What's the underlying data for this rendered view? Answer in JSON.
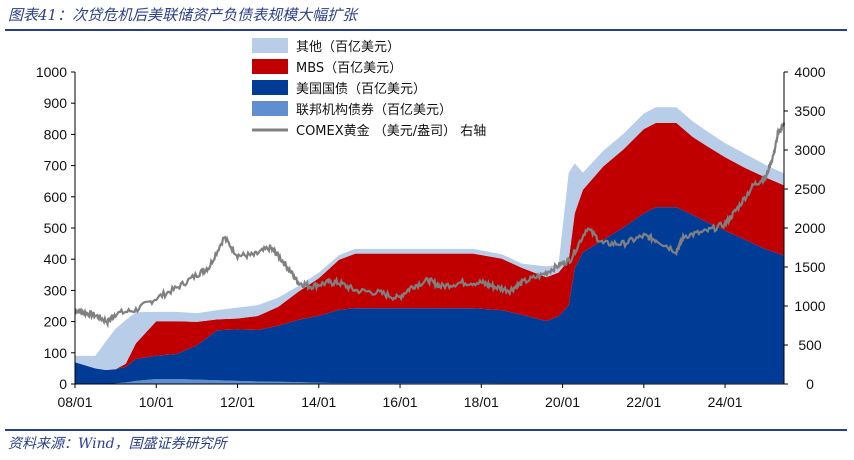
{
  "header": {
    "title": "图表41：次贷危机后美联储资产负债表规模大幅扩张"
  },
  "footer": {
    "source": "资料来源：Wind，国盛证券研究所"
  },
  "chart_data": {
    "type": "area",
    "stacked": true,
    "x_ticks": [
      "08/01",
      "10/01",
      "12/01",
      "14/01",
      "16/01",
      "18/01",
      "20/01",
      "22/01",
      "24/01"
    ],
    "x_range": [
      2008.0,
      2025.45
    ],
    "y_left": {
      "range": [
        0,
        1000
      ],
      "ticks": [
        0,
        100,
        200,
        300,
        400,
        500,
        600,
        700,
        800,
        900,
        1000
      ]
    },
    "y_right": {
      "range": [
        0,
        4000
      ],
      "ticks": [
        0,
        500,
        1000,
        1500,
        2000,
        2500,
        3000,
        3500,
        4000
      ],
      "label": "右轴"
    },
    "x": [
      2008.0,
      2008.5,
      2008.75,
      2009.0,
      2009.25,
      2009.5,
      2010.0,
      2010.5,
      2011.0,
      2011.5,
      2012.0,
      2012.5,
      2013.0,
      2013.5,
      2014.0,
      2014.5,
      2014.9,
      2015.5,
      2016.0,
      2017.0,
      2017.8,
      2018.5,
      2019.0,
      2019.6,
      2019.9,
      2020.15,
      2020.3,
      2020.5,
      2021.0,
      2021.5,
      2022.0,
      2022.3,
      2022.8,
      2023.2,
      2023.5,
      2024.0,
      2024.5,
      2025.0,
      2025.45
    ],
    "series": [
      {
        "name": "联邦机构债券（百亿美元）",
        "color": "#5f8fd0",
        "values": [
          0,
          0,
          0,
          2,
          5,
          10,
          16,
          16,
          14,
          12,
          10,
          8,
          7,
          6,
          4,
          3,
          3,
          3,
          3,
          3,
          3,
          2,
          2,
          2,
          2,
          2,
          2,
          2,
          2,
          2,
          2,
          2,
          2,
          2,
          2,
          2,
          2,
          2,
          2
        ]
      },
      {
        "name": "美国国债（百亿美元）",
        "color": "#003c96",
        "values": [
          70,
          50,
          45,
          45,
          50,
          70,
          75,
          80,
          110,
          160,
          165,
          165,
          180,
          200,
          215,
          235,
          240,
          240,
          240,
          240,
          240,
          235,
          220,
          200,
          215,
          250,
          370,
          420,
          460,
          500,
          545,
          565,
          565,
          540,
          520,
          490,
          460,
          430,
          410
        ]
      },
      {
        "name": "MBS（百亿美元）",
        "color": "#c00000",
        "values": [
          0,
          0,
          0,
          0,
          10,
          50,
          110,
          105,
          75,
          35,
          35,
          45,
          60,
          90,
          120,
          160,
          175,
          175,
          175,
          175,
          175,
          165,
          150,
          140,
          140,
          145,
          175,
          200,
          235,
          250,
          270,
          270,
          270,
          250,
          245,
          235,
          230,
          230,
          225
        ]
      },
      {
        "name": "其他（百亿美元）",
        "color": "#b7cde8",
        "values": [
          20,
          40,
          90,
          130,
          140,
          100,
          30,
          30,
          28,
          30,
          35,
          35,
          30,
          18,
          18,
          15,
          15,
          15,
          15,
          15,
          15,
          14,
          14,
          35,
          25,
          280,
          160,
          55,
          50,
          50,
          50,
          50,
          50,
          50,
          48,
          45,
          45,
          40,
          38
        ]
      }
    ],
    "line": {
      "name": "COMEX黄金 （美元/盎司） 右轴",
      "color": "#808080",
      "axis": "right",
      "x": [
        2008.0,
        2008.2,
        2008.5,
        2008.8,
        2009.0,
        2009.5,
        2010.0,
        2010.5,
        2011.0,
        2011.3,
        2011.67,
        2012.0,
        2012.4,
        2012.8,
        2013.0,
        2013.3,
        2013.5,
        2013.8,
        2014.2,
        2014.5,
        2014.9,
        2015.5,
        2015.95,
        2016.3,
        2016.7,
        2017.0,
        2017.5,
        2018.0,
        2018.3,
        2018.7,
        2019.0,
        2019.5,
        2019.9,
        2020.2,
        2020.6,
        2021.0,
        2021.5,
        2022.0,
        2022.3,
        2022.8,
        2023.0,
        2023.5,
        2024.0,
        2024.3,
        2024.7,
        2025.0,
        2025.2,
        2025.3,
        2025.45
      ],
      "values": [
        950,
        920,
        880,
        800,
        900,
        950,
        1100,
        1230,
        1400,
        1500,
        1880,
        1650,
        1650,
        1750,
        1650,
        1450,
        1300,
        1250,
        1300,
        1300,
        1200,
        1170,
        1100,
        1250,
        1330,
        1250,
        1300,
        1300,
        1250,
        1200,
        1300,
        1400,
        1520,
        1600,
        2000,
        1800,
        1800,
        1900,
        1850,
        1700,
        1900,
        1950,
        2050,
        2250,
        2550,
        2650,
        2950,
        3200,
        3350
      ]
    }
  }
}
